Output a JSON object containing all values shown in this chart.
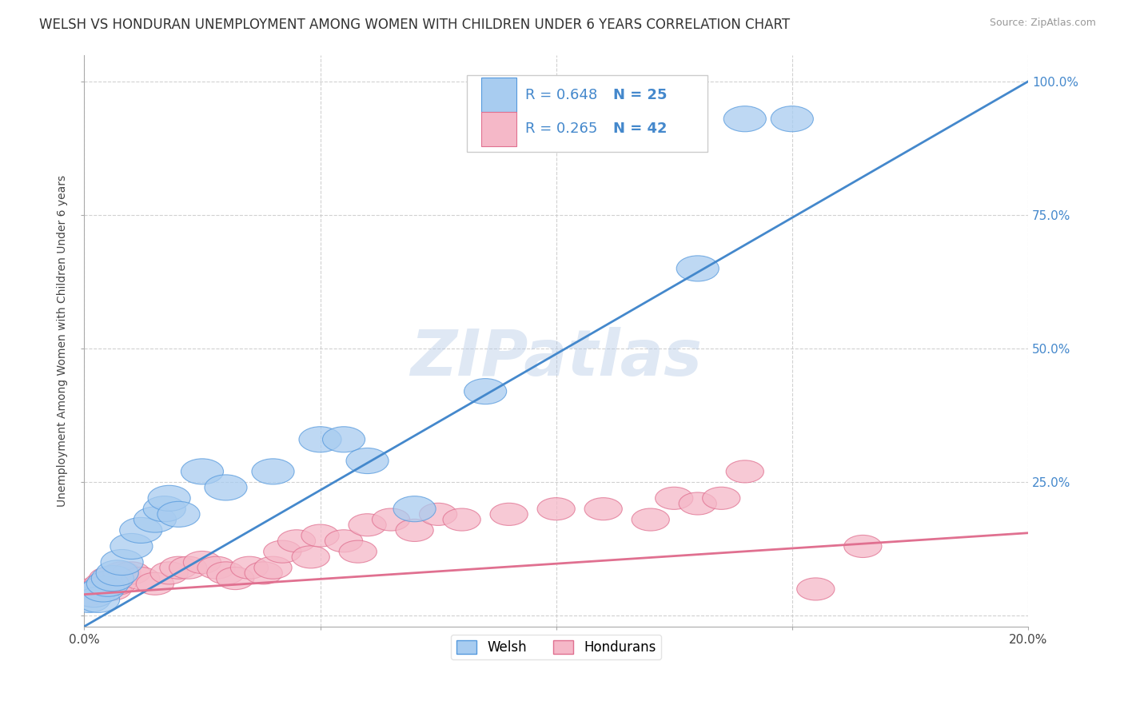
{
  "title": "WELSH VS HONDURAN UNEMPLOYMENT AMONG WOMEN WITH CHILDREN UNDER 6 YEARS CORRELATION CHART",
  "source": "Source: ZipAtlas.com",
  "ylabel": "Unemployment Among Women with Children Under 6 years",
  "xlim": [
    0.0,
    0.2
  ],
  "ylim": [
    -0.02,
    1.05
  ],
  "xticks": [
    0.0,
    0.05,
    0.1,
    0.15,
    0.2
  ],
  "xticklabels": [
    "0.0%",
    "",
    "",
    "",
    "20.0%"
  ],
  "yticks_right": [
    0.0,
    0.25,
    0.5,
    0.75,
    1.0
  ],
  "yticklabels_right": [
    "",
    "25.0%",
    "50.0%",
    "75.0%",
    "100.0%"
  ],
  "welsh_color": "#A8CCF0",
  "welsh_edge_color": "#5599DD",
  "honduran_color": "#F5B8C8",
  "honduran_edge_color": "#E07090",
  "welsh_line_color": "#4488CC",
  "honduran_line_color": "#E07090",
  "welsh_R": 0.648,
  "welsh_N": 25,
  "honduran_R": 0.265,
  "honduran_N": 42,
  "watermark": "ZIPatlas",
  "background_color": "#FFFFFF",
  "legend_text_color": "#4488CC",
  "welsh_x": [
    0.001,
    0.002,
    0.003,
    0.004,
    0.005,
    0.006,
    0.007,
    0.008,
    0.01,
    0.012,
    0.015,
    0.017,
    0.018,
    0.02,
    0.025,
    0.03,
    0.04,
    0.05,
    0.055,
    0.06,
    0.07,
    0.085,
    0.13,
    0.14,
    0.15
  ],
  "welsh_y": [
    0.03,
    0.04,
    0.03,
    0.05,
    0.06,
    0.07,
    0.08,
    0.1,
    0.13,
    0.16,
    0.18,
    0.2,
    0.22,
    0.19,
    0.27,
    0.24,
    0.27,
    0.33,
    0.33,
    0.29,
    0.2,
    0.42,
    0.65,
    0.93,
    0.93
  ],
  "honduran_x": [
    0.001,
    0.002,
    0.003,
    0.004,
    0.005,
    0.006,
    0.007,
    0.008,
    0.01,
    0.012,
    0.015,
    0.018,
    0.02,
    0.022,
    0.025,
    0.028,
    0.03,
    0.032,
    0.035,
    0.038,
    0.04,
    0.042,
    0.045,
    0.048,
    0.05,
    0.055,
    0.058,
    0.06,
    0.065,
    0.07,
    0.075,
    0.08,
    0.09,
    0.1,
    0.11,
    0.12,
    0.125,
    0.13,
    0.135,
    0.14,
    0.155,
    0.165
  ],
  "honduran_y": [
    0.04,
    0.05,
    0.05,
    0.06,
    0.07,
    0.05,
    0.06,
    0.08,
    0.08,
    0.07,
    0.06,
    0.08,
    0.09,
    0.09,
    0.1,
    0.09,
    0.08,
    0.07,
    0.09,
    0.08,
    0.09,
    0.12,
    0.14,
    0.11,
    0.15,
    0.14,
    0.12,
    0.17,
    0.18,
    0.16,
    0.19,
    0.18,
    0.19,
    0.2,
    0.2,
    0.18,
    0.22,
    0.21,
    0.22,
    0.27,
    0.05,
    0.13
  ],
  "title_fontsize": 12,
  "axis_label_fontsize": 10,
  "tick_fontsize": 11,
  "legend_fontsize": 13,
  "grid_color": "#CCCCCC"
}
